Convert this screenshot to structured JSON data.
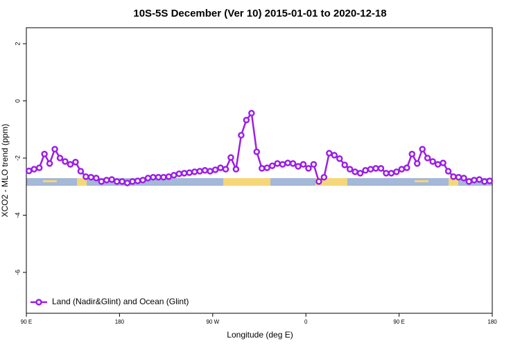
{
  "chart_data": {
    "type": "line",
    "title": "10S-5S December (Ver 10)   2015-01-01 to 2020-12-18",
    "xlabel": "Longitude (deg E)",
    "ylabel": "XCO2 - MLO trend (ppm)",
    "xlim": [
      90,
      540
    ],
    "ylim": [
      -7.43,
      2.56
    ],
    "xticks": [
      {
        "value": 90,
        "label": "90 E"
      },
      180,
      {
        "value": 270,
        "label": "90 W"
      },
      {
        "value": 360,
        "label": "0"
      },
      {
        "value": 450,
        "label": "90 E"
      },
      {
        "value": 540,
        "label": "180"
      }
    ],
    "yticks": [
      2,
      0,
      -2,
      -4,
      -6
    ],
    "legend": "bottom-left",
    "x": [
      92.5,
      97.5,
      102.5,
      107.5,
      112.5,
      117.5,
      122.5,
      127.5,
      132.5,
      137.5,
      142.5,
      147.5,
      152.5,
      157.5,
      162.5,
      167.5,
      172.5,
      177.5,
      182.5,
      187.5,
      192.5,
      197.5,
      202.5,
      207.5,
      212.5,
      217.5,
      222.5,
      227.5,
      232.5,
      237.5,
      242.5,
      247.5,
      252.5,
      257.5,
      262.5,
      267.5,
      272.5,
      277.5,
      282.5,
      287.5,
      292.5,
      297.5,
      302.5,
      307.5,
      312.5,
      317.5,
      322.5,
      327.5,
      332.5,
      337.5,
      342.5,
      347.5,
      352.5,
      357.5,
      362.5,
      367.5,
      372.5,
      377.5,
      382.5,
      387.5,
      392.5,
      397.5,
      402.5,
      407.5,
      412.5,
      417.5,
      422.5,
      427.5,
      432.5,
      437.5,
      442.5,
      447.5,
      452.5,
      457.5,
      462.5,
      467.5,
      472.5,
      477.5,
      482.5,
      487.5,
      492.5,
      497.5,
      502.5,
      507.5,
      512.5,
      517.5,
      522.5,
      527.5,
      532.5,
      537.5
    ],
    "series": [
      {
        "name": "Land (Nadir&Glint) and Ocean (Glint)",
        "color": "#9b1ee6",
        "values": [
          -2.45,
          -2.39,
          -2.34,
          -1.86,
          -2.19,
          -1.69,
          -2.0,
          -2.12,
          -2.22,
          -2.14,
          -2.46,
          -2.65,
          -2.67,
          -2.7,
          -2.82,
          -2.77,
          -2.75,
          -2.82,
          -2.82,
          -2.87,
          -2.82,
          -2.8,
          -2.77,
          -2.7,
          -2.67,
          -2.67,
          -2.67,
          -2.65,
          -2.6,
          -2.55,
          -2.53,
          -2.51,
          -2.48,
          -2.46,
          -2.43,
          -2.46,
          -2.41,
          -2.34,
          -2.39,
          -1.98,
          -2.39,
          -1.2,
          -0.67,
          -0.43,
          -1.78,
          -2.36,
          -2.34,
          -2.27,
          -2.19,
          -2.22,
          -2.17,
          -2.19,
          -2.29,
          -2.22,
          -2.36,
          -2.22,
          -2.82,
          -2.67,
          -1.83,
          -1.9,
          -2.02,
          -2.24,
          -2.39,
          -2.48,
          -2.53,
          -2.43,
          -2.39,
          -2.36,
          -2.36,
          -2.53,
          -2.53,
          -2.48,
          -2.39,
          -2.34,
          -1.86,
          -2.19,
          -1.69,
          -2.0,
          -2.12,
          -2.22,
          -2.17,
          -2.46,
          -2.65,
          -2.67,
          -2.7,
          -2.82,
          -2.77,
          -2.75,
          -2.82,
          -2.8
        ]
      }
    ]
  }
}
